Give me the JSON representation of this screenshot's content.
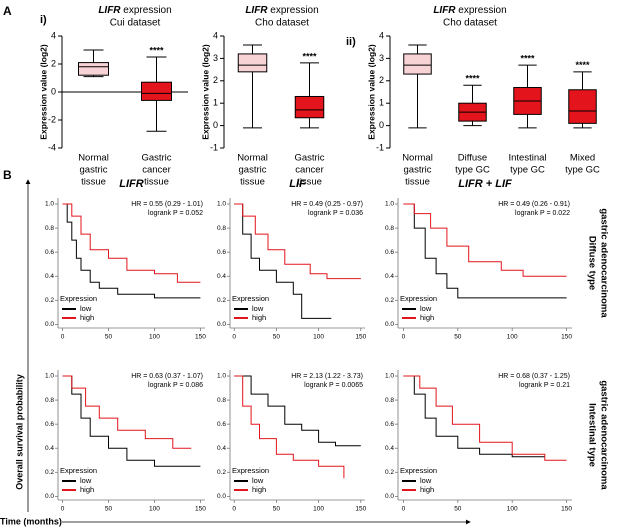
{
  "panel_labels": [
    "A",
    "B"
  ],
  "figure_b": {
    "ylabel": "Overall survival probability",
    "xlabel": "Time (months)",
    "column_titles": [
      "LIFR",
      "LIF",
      "LIFR + LIF"
    ],
    "row_labels": [
      [
        "Diffuse type",
        "gastric adenocarcinoma"
      ],
      [
        "Intestinal type",
        "gastric adenocarcinoma"
      ]
    ]
  },
  "chart_data": [
    {
      "type": "box",
      "label": "i)",
      "title": "LIFR expression",
      "subtitle": "Cui dataset",
      "ylabel": "Expression value (log2)",
      "ylim": [
        -4,
        4
      ],
      "yticks": [
        -4,
        -2,
        0,
        2,
        4
      ],
      "zero_line": true,
      "categories": [
        [
          "Normal",
          "gastric",
          "tissue"
        ],
        [
          "Gastric",
          "cancer",
          "tissue"
        ]
      ],
      "colors": [
        "#f8d3d6",
        "#e3141b"
      ],
      "boxes": [
        {
          "min": 1.1,
          "q1": 1.2,
          "median": 1.8,
          "q3": 2.1,
          "max": 3.0
        },
        {
          "min": -2.8,
          "q1": -0.6,
          "median": -0.1,
          "q3": 0.7,
          "max": 2.5
        }
      ],
      "significance": [
        null,
        "****"
      ]
    },
    {
      "type": "box",
      "title": "LIFR expression",
      "subtitle": "Cho dataset",
      "ylabel": "Expression value (log2)",
      "ylim": [
        -1,
        4
      ],
      "yticks": [
        -1,
        0,
        1,
        2,
        3,
        4
      ],
      "zero_line": false,
      "categories": [
        [
          "Normal",
          "gastric",
          "tissue"
        ],
        [
          "Gastric",
          "cancer",
          "tissue"
        ]
      ],
      "colors": [
        "#f8d3d6",
        "#e3141b"
      ],
      "boxes": [
        {
          "min": -0.1,
          "q1": 2.4,
          "median": 2.7,
          "q3": 3.2,
          "max": 3.6
        },
        {
          "min": -0.1,
          "q1": 0.35,
          "median": 0.7,
          "q3": 1.3,
          "max": 2.8
        }
      ],
      "significance": [
        null,
        "****"
      ]
    },
    {
      "type": "box",
      "label": "ii)",
      "title": "LIFR expression",
      "subtitle": "Cho dataset",
      "ylabel": "Expression value (log2)",
      "ylim": [
        -1,
        4
      ],
      "yticks": [
        -1,
        0,
        1,
        2,
        3,
        4
      ],
      "zero_line": false,
      "categories": [
        [
          "Normal",
          "gastric",
          "tissue"
        ],
        [
          "Diffuse",
          "type GC"
        ],
        [
          "Intestinal",
          "type GC"
        ],
        [
          "Mixed",
          "type GC"
        ]
      ],
      "colors": [
        "#f8d3d6",
        "#e3141b",
        "#e3141b",
        "#e3141b"
      ],
      "boxes": [
        {
          "min": -0.1,
          "q1": 2.3,
          "median": 2.7,
          "q3": 3.2,
          "max": 3.6
        },
        {
          "min": 0.0,
          "q1": 0.2,
          "median": 0.6,
          "q3": 1.0,
          "max": 1.8
        },
        {
          "min": -0.1,
          "q1": 0.5,
          "median": 1.1,
          "q3": 1.7,
          "max": 2.7
        },
        {
          "min": -0.1,
          "q1": 0.1,
          "median": 0.65,
          "q3": 1.6,
          "max": 2.4
        }
      ],
      "significance": [
        null,
        "****",
        "****",
        "****"
      ]
    },
    {
      "type": "km",
      "hr": "HR = 0.55 (0.29 - 1.01)",
      "logrank": "logrank P = 0.052",
      "xlim": [
        -5,
        155
      ],
      "ylim": [
        -0.03,
        1.05
      ],
      "xticks": [
        0,
        50,
        100,
        150
      ],
      "yticks": [
        {
          "value": 0,
          "label": "0.0"
        },
        {
          "value": 0.2,
          "label": "0.2"
        },
        {
          "value": 0.4,
          "label": "0.4"
        },
        {
          "value": 0.6,
          "label": "0.6"
        },
        {
          "value": 0.8,
          "label": "0.8"
        },
        {
          "value": 1,
          "label": "1.0"
        }
      ],
      "legend_title": "Expression",
      "series": [
        {
          "name": "low",
          "color": "#000000",
          "x": [
            0,
            5,
            5,
            10,
            10,
            15,
            15,
            20,
            20,
            30,
            30,
            40,
            40,
            60,
            60,
            100,
            100,
            150
          ],
          "values": [
            1,
            1,
            0.85,
            0.85,
            0.7,
            0.7,
            0.55,
            0.55,
            0.45,
            0.45,
            0.35,
            0.35,
            0.3,
            0.3,
            0.25,
            0.25,
            0.22,
            0.22
          ]
        },
        {
          "name": "high",
          "color": "#e3141b",
          "x": [
            0,
            10,
            10,
            20,
            20,
            30,
            30,
            50,
            50,
            70,
            70,
            100,
            100,
            125,
            125,
            150
          ],
          "values": [
            1,
            1,
            0.9,
            0.9,
            0.75,
            0.75,
            0.62,
            0.62,
            0.55,
            0.55,
            0.45,
            0.45,
            0.42,
            0.42,
            0.35,
            0.35
          ]
        }
      ]
    },
    {
      "type": "km",
      "hr": "HR = 0.49 (0.25 - 0.97)",
      "logrank": "logrank P = 0.036",
      "xlim": [
        -5,
        155
      ],
      "ylim": [
        -0.03,
        1.05
      ],
      "xticks": [
        0,
        50,
        100,
        150
      ],
      "yticks": [
        {
          "value": 0,
          "label": "0.0"
        },
        {
          "value": 0.2,
          "label": "0.2"
        },
        {
          "value": 0.4,
          "label": "0.4"
        },
        {
          "value": 0.6,
          "label": "0.6"
        },
        {
          "value": 0.8,
          "label": "0.8"
        },
        {
          "value": 1,
          "label": "1.0"
        }
      ],
      "legend_title": "Expression",
      "series": [
        {
          "name": "low",
          "color": "#000000",
          "x": [
            0,
            10,
            10,
            20,
            20,
            30,
            30,
            50,
            50,
            70,
            70,
            80,
            80,
            115
          ],
          "values": [
            1,
            1,
            0.75,
            0.75,
            0.55,
            0.55,
            0.45,
            0.45,
            0.35,
            0.35,
            0.25,
            0.25,
            0.05,
            0.05
          ]
        },
        {
          "name": "high",
          "color": "#e3141b",
          "x": [
            0,
            10,
            10,
            25,
            25,
            40,
            40,
            60,
            60,
            90,
            90,
            110,
            110,
            150
          ],
          "values": [
            1,
            1,
            0.9,
            0.9,
            0.75,
            0.75,
            0.62,
            0.62,
            0.5,
            0.5,
            0.42,
            0.42,
            0.38,
            0.38
          ]
        }
      ]
    },
    {
      "type": "km",
      "hr": "HR = 0.49 (0.26 - 0.91)",
      "logrank": "logrank P = 0.022",
      "xlim": [
        -5,
        155
      ],
      "ylim": [
        -0.03,
        1.05
      ],
      "xticks": [
        0,
        50,
        100,
        150
      ],
      "yticks": [
        {
          "value": 0,
          "label": "0.0"
        },
        {
          "value": 0.2,
          "label": "0.2"
        },
        {
          "value": 0.4,
          "label": "0.4"
        },
        {
          "value": 0.6,
          "label": "0.6"
        },
        {
          "value": 0.8,
          "label": "0.8"
        },
        {
          "value": 1,
          "label": "1.0"
        }
      ],
      "legend_title": "Expression",
      "series": [
        {
          "name": "low",
          "color": "#000000",
          "x": [
            0,
            10,
            10,
            20,
            20,
            30,
            30,
            40,
            40,
            50,
            50,
            150
          ],
          "values": [
            1,
            1,
            0.8,
            0.8,
            0.55,
            0.55,
            0.42,
            0.42,
            0.3,
            0.3,
            0.22,
            0.22
          ]
        },
        {
          "name": "high",
          "color": "#e3141b",
          "x": [
            0,
            10,
            10,
            25,
            25,
            40,
            40,
            60,
            60,
            90,
            90,
            110,
            110,
            150
          ],
          "values": [
            1,
            1,
            0.92,
            0.92,
            0.8,
            0.8,
            0.65,
            0.65,
            0.52,
            0.52,
            0.45,
            0.45,
            0.4,
            0.4
          ]
        }
      ]
    },
    {
      "type": "km",
      "hr": "HR = 0.63 (0.37 - 1.07)",
      "logrank": "logrank P = 0.086",
      "xlim": [
        -5,
        155
      ],
      "ylim": [
        -0.03,
        1.05
      ],
      "xticks": [
        0,
        50,
        100,
        150
      ],
      "yticks": [
        {
          "value": 0,
          "label": "0.0"
        },
        {
          "value": 0.2,
          "label": "0.2"
        },
        {
          "value": 0.4,
          "label": "0.4"
        },
        {
          "value": 0.6,
          "label": "0.6"
        },
        {
          "value": 0.8,
          "label": "0.8"
        },
        {
          "value": 1,
          "label": "1.0"
        }
      ],
      "legend_title": "Expression",
      "series": [
        {
          "name": "low",
          "color": "#000000",
          "x": [
            0,
            10,
            10,
            20,
            20,
            30,
            30,
            50,
            50,
            70,
            70,
            100,
            100,
            150
          ],
          "values": [
            1,
            1,
            0.85,
            0.85,
            0.65,
            0.65,
            0.5,
            0.5,
            0.4,
            0.4,
            0.3,
            0.3,
            0.25,
            0.25
          ]
        },
        {
          "name": "high",
          "color": "#e3141b",
          "x": [
            0,
            10,
            10,
            25,
            25,
            40,
            40,
            60,
            60,
            90,
            90,
            120,
            120,
            140
          ],
          "values": [
            1,
            1,
            0.9,
            0.9,
            0.75,
            0.75,
            0.65,
            0.65,
            0.55,
            0.55,
            0.48,
            0.48,
            0.4,
            0.4
          ]
        }
      ]
    },
    {
      "type": "km",
      "hr": "HR = 2.13 (1.22 - 3.73)",
      "logrank": "logrank P = 0.0065",
      "xlim": [
        -5,
        155
      ],
      "ylim": [
        -0.03,
        1.05
      ],
      "xticks": [
        0,
        50,
        100,
        150
      ],
      "yticks": [
        {
          "value": 0,
          "label": "0.0"
        },
        {
          "value": 0.2,
          "label": "0.2"
        },
        {
          "value": 0.4,
          "label": "0.4"
        },
        {
          "value": 0.6,
          "label": "0.6"
        },
        {
          "value": 0.8,
          "label": "0.8"
        },
        {
          "value": 1,
          "label": "1.0"
        }
      ],
      "legend_title": "Expression",
      "series": [
        {
          "name": "low",
          "color": "#000000",
          "x": [
            0,
            20,
            20,
            40,
            40,
            60,
            60,
            80,
            80,
            100,
            100,
            120,
            120,
            150
          ],
          "values": [
            1,
            1,
            0.85,
            0.85,
            0.75,
            0.75,
            0.6,
            0.6,
            0.55,
            0.55,
            0.45,
            0.45,
            0.42,
            0.42
          ]
        },
        {
          "name": "high",
          "color": "#e3141b",
          "x": [
            0,
            10,
            10,
            20,
            20,
            30,
            30,
            50,
            50,
            70,
            70,
            100,
            100,
            130,
            130
          ],
          "values": [
            1,
            1,
            0.75,
            0.75,
            0.6,
            0.6,
            0.48,
            0.48,
            0.35,
            0.35,
            0.3,
            0.3,
            0.25,
            0.25,
            0.15
          ]
        }
      ]
    },
    {
      "type": "km",
      "hr": "HR = 0.68 (0.37 - 1.25)",
      "logrank": "logrank P = 0.21",
      "xlim": [
        -5,
        155
      ],
      "ylim": [
        -0.03,
        1.05
      ],
      "xticks": [
        0,
        50,
        100,
        150
      ],
      "yticks": [
        {
          "value": 0,
          "label": "0.0"
        },
        {
          "value": 0.2,
          "label": "0.2"
        },
        {
          "value": 0.4,
          "label": "0.4"
        },
        {
          "value": 0.6,
          "label": "0.6"
        },
        {
          "value": 0.8,
          "label": "0.8"
        },
        {
          "value": 1,
          "label": "1.0"
        }
      ],
      "legend_title": "Expression",
      "series": [
        {
          "name": "low",
          "color": "#000000",
          "x": [
            0,
            10,
            10,
            20,
            20,
            30,
            30,
            50,
            50,
            70,
            70,
            100,
            100,
            130
          ],
          "values": [
            1,
            1,
            0.85,
            0.85,
            0.65,
            0.65,
            0.5,
            0.5,
            0.4,
            0.4,
            0.35,
            0.35,
            0.33,
            0.33
          ]
        },
        {
          "name": "high",
          "color": "#e3141b",
          "x": [
            0,
            15,
            15,
            30,
            30,
            45,
            45,
            70,
            70,
            100,
            100,
            130,
            130,
            150
          ],
          "values": [
            1,
            1,
            0.9,
            0.9,
            0.75,
            0.75,
            0.6,
            0.6,
            0.45,
            0.45,
            0.35,
            0.35,
            0.3,
            0.3
          ]
        }
      ]
    }
  ]
}
